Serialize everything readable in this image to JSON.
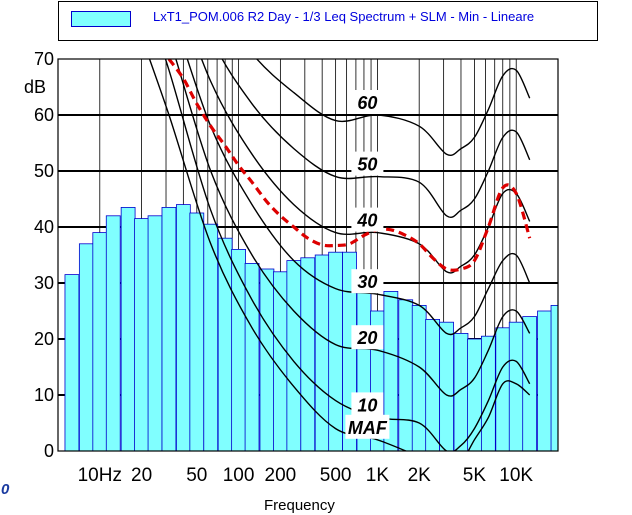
{
  "legend": {
    "series_label": "LxT1_POM.006 R2 Day - 1/3 Leq Spectrum + SLM - Min - Lineare",
    "swatch_color": "#80ffff"
  },
  "axis_labels": {
    "ylabel": "dB",
    "xlabel": "Frequency"
  },
  "corner_mark": "0",
  "chart_data": {
    "type": "bar",
    "title": "",
    "xlabel": "Frequency",
    "ylabel": "dB",
    "ylim": [
      0,
      70
    ],
    "yticks": [
      "0",
      "10",
      "20",
      "30",
      "40",
      "50",
      "60",
      "70"
    ],
    "x_scale": "log",
    "xlim_hz": [
      5,
      20000
    ],
    "xtick_labels": [
      {
        "hz": 10,
        "label": "10Hz"
      },
      {
        "hz": 20,
        "label": "20"
      },
      {
        "hz": 50,
        "label": "50"
      },
      {
        "hz": 100,
        "label": "100"
      },
      {
        "hz": 200,
        "label": "200"
      },
      {
        "hz": 500,
        "label": "500"
      },
      {
        "hz": 1000,
        "label": "1K"
      },
      {
        "hz": 2000,
        "label": "2K"
      },
      {
        "hz": 5000,
        "label": "5K"
      },
      {
        "hz": 10000,
        "label": "10K"
      }
    ],
    "grid": true,
    "bar_color": "#80ffff",
    "bar_edge_color": "#0000cc",
    "bars": {
      "frequencies_hz": [
        6.3,
        8,
        10,
        12.5,
        16,
        20,
        25,
        31.5,
        40,
        50,
        63,
        80,
        100,
        125,
        160,
        200,
        250,
        315,
        400,
        500,
        630,
        800,
        1000,
        1250,
        1600,
        2000,
        2500,
        3150,
        4000,
        5000,
        6300,
        8000,
        10000,
        12500,
        16000,
        20000
      ],
      "values_db": [
        31.5,
        37,
        39,
        42,
        43.5,
        41.5,
        42,
        43.5,
        44,
        42.5,
        40.5,
        38,
        36,
        33.5,
        32.5,
        32,
        34,
        34.5,
        35,
        35.5,
        35.5,
        29,
        25,
        28.5,
        27,
        26,
        23.5,
        23,
        21,
        20,
        20.5,
        22,
        23,
        24,
        25,
        26
      ]
    },
    "contour_labels": [
      "60",
      "50",
      "40",
      "30",
      "20",
      "10",
      "MAF"
    ],
    "contours": [
      {
        "label": "MAF",
        "freqs_hz": [
          20,
          31.5,
          63,
          125,
          250,
          500,
          1000,
          2000,
          3150,
          4000,
          5000,
          6300,
          8000,
          10000,
          12500
        ],
        "values_db": [
          74,
          60,
          37,
          22,
          11.5,
          4,
          2,
          -1,
          -3,
          -2,
          2,
          6,
          12,
          12,
          10
        ]
      },
      {
        "label": "10",
        "freqs_hz": [
          20,
          31.5,
          63,
          125,
          250,
          500,
          1000,
          2000,
          3150,
          4000,
          5000,
          6300,
          8000,
          10000,
          12500
        ],
        "values_db": [
          83,
          68,
          43,
          27,
          16,
          9,
          6,
          5,
          0,
          1,
          4,
          9,
          15,
          16,
          12
        ]
      },
      {
        "label": "20",
        "freqs_hz": [
          20,
          31.5,
          63,
          125,
          250,
          500,
          1000,
          2000,
          3150,
          4000,
          5000,
          6300,
          8000,
          10000,
          12500
        ],
        "values_db": [
          88,
          74,
          50,
          35,
          25,
          19,
          18,
          15,
          10,
          11,
          13,
          18,
          24,
          25,
          21
        ]
      },
      {
        "label": "30",
        "freqs_hz": [
          20,
          31.5,
          63,
          125,
          250,
          500,
          1000,
          2000,
          3150,
          4000,
          5000,
          6300,
          8000,
          10000,
          12500
        ],
        "values_db": [
          93,
          80,
          58,
          44,
          34,
          29,
          28,
          26,
          21,
          22,
          24,
          29,
          34,
          35,
          30
        ]
      },
      {
        "label": "40",
        "freqs_hz": [
          20,
          31.5,
          63,
          125,
          250,
          500,
          1000,
          2000,
          3150,
          4000,
          5000,
          6300,
          8000,
          10000,
          12500
        ],
        "values_db": [
          98,
          86,
          66,
          53,
          44,
          39,
          39,
          37,
          32,
          33,
          35,
          40,
          46,
          46,
          41
        ]
      },
      {
        "label": "50",
        "freqs_hz": [
          31.5,
          63,
          125,
          250,
          500,
          1000,
          2000,
          3150,
          4000,
          5000,
          6300,
          8000,
          10000,
          12500
        ],
        "values_db": [
          94,
          74,
          62,
          54,
          49,
          49,
          48,
          42,
          43,
          45,
          50,
          56,
          57,
          52
        ]
      },
      {
        "label": "60",
        "freqs_hz": [
          63,
          125,
          250,
          500,
          1000,
          2000,
          3150,
          4000,
          5000,
          6300,
          8000,
          10000,
          12500
        ],
        "values_db": [
          82,
          71,
          64,
          59,
          60,
          58,
          53,
          54,
          56,
          61,
          67,
          68,
          63
        ]
      }
    ],
    "red_dashed_curve": {
      "color": "#dd0000",
      "freqs_hz": [
        31.5,
        40,
        50,
        63,
        80,
        100,
        125,
        160,
        200,
        250,
        315,
        400,
        500,
        630,
        800,
        1000,
        1250,
        1600,
        2000,
        2500,
        3150,
        4000,
        5000,
        6300,
        8000,
        10000,
        12500
      ],
      "values_db": [
        70,
        66.5,
        62,
        58,
        54.5,
        51,
        48,
        44.5,
        42,
        40,
        38,
        36.8,
        36.7,
        37,
        38.5,
        39.5,
        39.5,
        38.5,
        37,
        34.5,
        32.5,
        32.5,
        34,
        40,
        47,
        46,
        38
      ]
    }
  }
}
